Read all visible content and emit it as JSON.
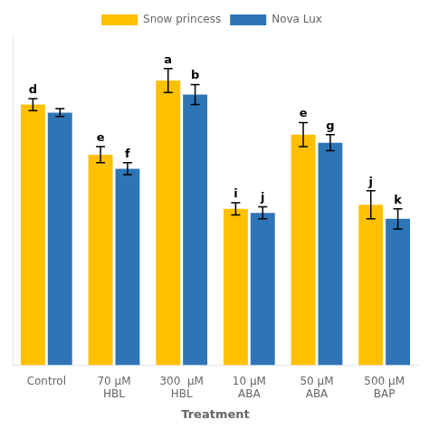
{
  "chart_data": {
    "type": "bar",
    "xlabel": "Treatment",
    "categories": [
      "Control",
      "70 μM\nHBL",
      "300  μM\nHBL",
      "10 μM\nABA",
      "50 μM\nABA",
      "500 μM\nBAP"
    ],
    "series": [
      {
        "name": "Snow princess",
        "color": "#FFC000",
        "values": [
          13.0,
          10.5,
          14.2,
          7.8,
          11.5,
          8.0
        ],
        "errors": [
          0.3,
          0.4,
          0.6,
          0.3,
          0.6,
          0.7
        ],
        "labels": [
          "d",
          "e",
          "a",
          "i",
          "e",
          "j"
        ]
      },
      {
        "name": "Nova Lux",
        "color": "#2E75B6",
        "values": [
          12.6,
          9.8,
          13.5,
          7.6,
          11.1,
          7.3
        ],
        "errors": [
          0.2,
          0.3,
          0.5,
          0.3,
          0.4,
          0.5
        ],
        "labels": [
          null,
          "f",
          "b",
          "j",
          "g",
          "k"
        ]
      }
    ],
    "ylim": [
      0,
      16.5
    ],
    "tick_labels": "x",
    "grid": false,
    "legend": "top"
  }
}
